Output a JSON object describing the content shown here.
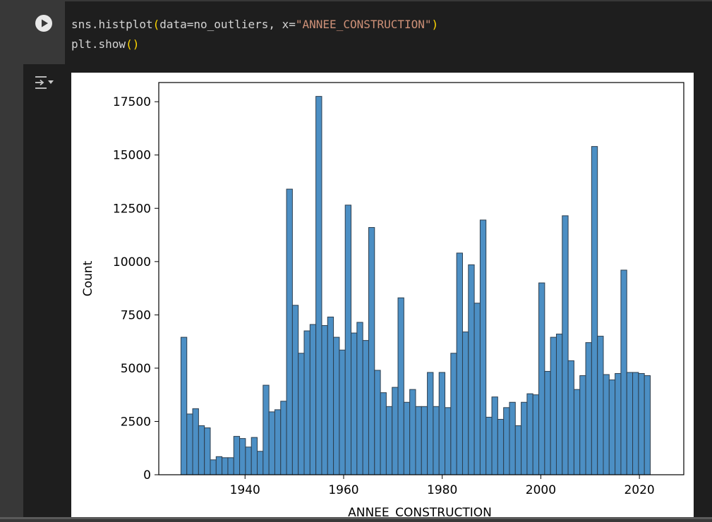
{
  "cell": {
    "code_lines": [
      {
        "parts": [
          {
            "t": "sns.histplot",
            "c": ""
          },
          {
            "t": "(",
            "c": "paren"
          },
          {
            "t": "data=no_outliers, x=",
            "c": ""
          },
          {
            "t": "\"ANNEE_CONSTRUCTION\"",
            "c": "str"
          },
          {
            "t": ")",
            "c": "paren"
          }
        ]
      },
      {
        "parts": [
          {
            "t": "plt.show",
            "c": ""
          },
          {
            "t": "()",
            "c": "paren"
          }
        ]
      }
    ],
    "run_icon": "play-icon",
    "output_toggle_icon": "output-collapse-icon"
  },
  "chart_data": {
    "type": "bar",
    "xlabel": "ANNEE_CONSTRUCTION",
    "ylabel": "Count",
    "xlim": [
      1922.5,
      2029
    ],
    "ylim": [
      0,
      18400
    ],
    "xticks": [
      1940,
      1960,
      1980,
      2000,
      2020
    ],
    "yticks": [
      0,
      2500,
      5000,
      7500,
      10000,
      12500,
      15000,
      17500
    ],
    "bin_width": 1.19,
    "bin_start": 1927,
    "bar_color": "#4c8fc4",
    "edge_color": "#2d3e4e",
    "values": [
      6450,
      2850,
      3100,
      2300,
      2200,
      700,
      850,
      800,
      800,
      1800,
      1700,
      1300,
      1750,
      1100,
      4200,
      2950,
      3050,
      3450,
      13400,
      7950,
      5700,
      6750,
      7050,
      17750,
      7000,
      7400,
      6450,
      5850,
      12650,
      6650,
      7150,
      6300,
      11600,
      4900,
      3850,
      3200,
      4100,
      8300,
      3400,
      4000,
      3200,
      3200,
      4800,
      3200,
      4800,
      3150,
      5700,
      10400,
      6700,
      9850,
      8050,
      11950,
      2700,
      3650,
      2600,
      3150,
      3400,
      2300,
      3400,
      3800,
      3750,
      9000,
      4850,
      6450,
      6600,
      12150,
      5350,
      4000,
      4650,
      6200,
      15400,
      6500,
      4700,
      4450,
      4750,
      9600,
      4800,
      4800,
      4750,
      4650
    ]
  }
}
